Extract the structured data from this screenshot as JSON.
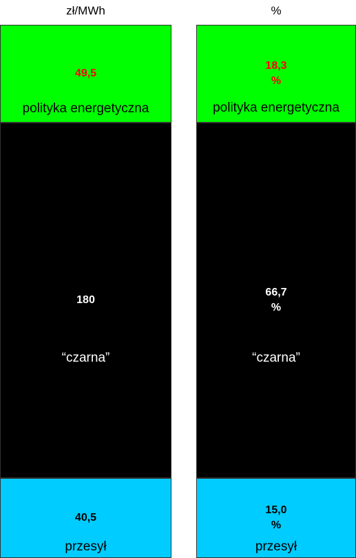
{
  "chart_data": {
    "type": "stacked-bar",
    "categories": [
      "zł/MWh",
      "%"
    ],
    "series": [
      {
        "name": "przesył",
        "color": "#00ccff",
        "label_color": "#000000",
        "values": [
          40.5,
          15.0
        ],
        "value_labels": [
          "40,5",
          "15,0 %"
        ]
      },
      {
        "name": "“czarna”",
        "color": "#000000",
        "label_color": "#ffffff",
        "values": [
          180,
          66.7
        ],
        "value_labels": [
          "180",
          "66,7 %"
        ]
      },
      {
        "name": "polityka energetyczna",
        "color": "#00ff00",
        "label_color": "#ff0000",
        "values": [
          49.5,
          18.3
        ],
        "value_labels": [
          "49,5",
          "18,3 %"
        ]
      }
    ]
  }
}
